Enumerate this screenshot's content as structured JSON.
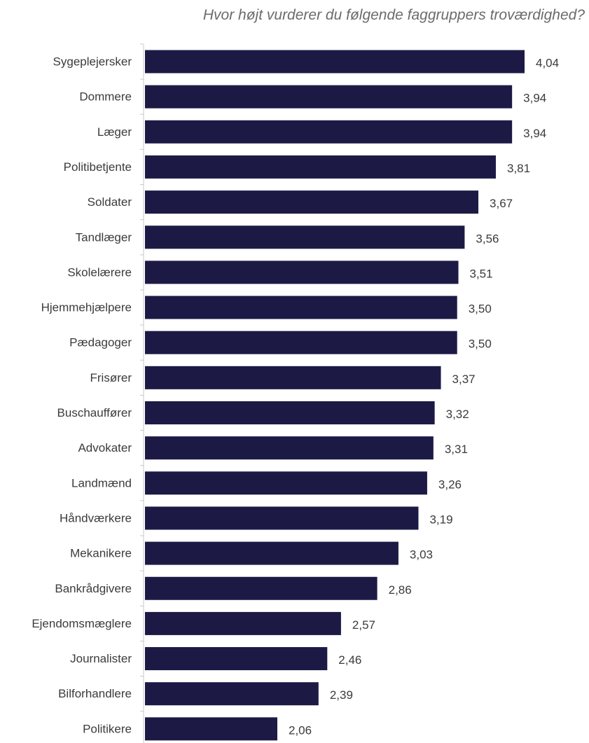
{
  "chart_data": {
    "type": "bar",
    "orientation": "horizontal",
    "title": "Hvor højt vurderer du følgende faggruppers troværdighed?",
    "categories": [
      "Sygeplejersker",
      "Dommere",
      "Læger",
      "Politibetjente",
      "Soldater",
      "Tandlæger",
      "Skolelærere",
      "Hjemmehjælpere",
      "Pædagoger",
      "Frisører",
      "Buschauffører",
      "Advokater",
      "Landmænd",
      "Håndværkere",
      "Mekanikere",
      "Bankrådgivere",
      "Ejendomsmæglere",
      "Journalister",
      "Bilforhandlere",
      "Politikere"
    ],
    "values": [
      4.04,
      3.94,
      3.94,
      3.81,
      3.67,
      3.56,
      3.51,
      3.5,
      3.5,
      3.37,
      3.32,
      3.31,
      3.26,
      3.19,
      3.03,
      2.86,
      2.57,
      2.46,
      2.39,
      2.06
    ],
    "value_labels": [
      "4,04",
      "3,94",
      "3,94",
      "3,81",
      "3,67",
      "3,56",
      "3,51",
      "3,50",
      "3,50",
      "3,37",
      "3,32",
      "3,31",
      "3,26",
      "3,19",
      "3,03",
      "2,86",
      "2,57",
      "2,46",
      "2,39",
      "2,06"
    ],
    "xlim": [
      1,
      4.04
    ],
    "bar_color": "#1c1a45",
    "axis_color": "#c8c8c8",
    "grid": false,
    "legend": "none"
  }
}
